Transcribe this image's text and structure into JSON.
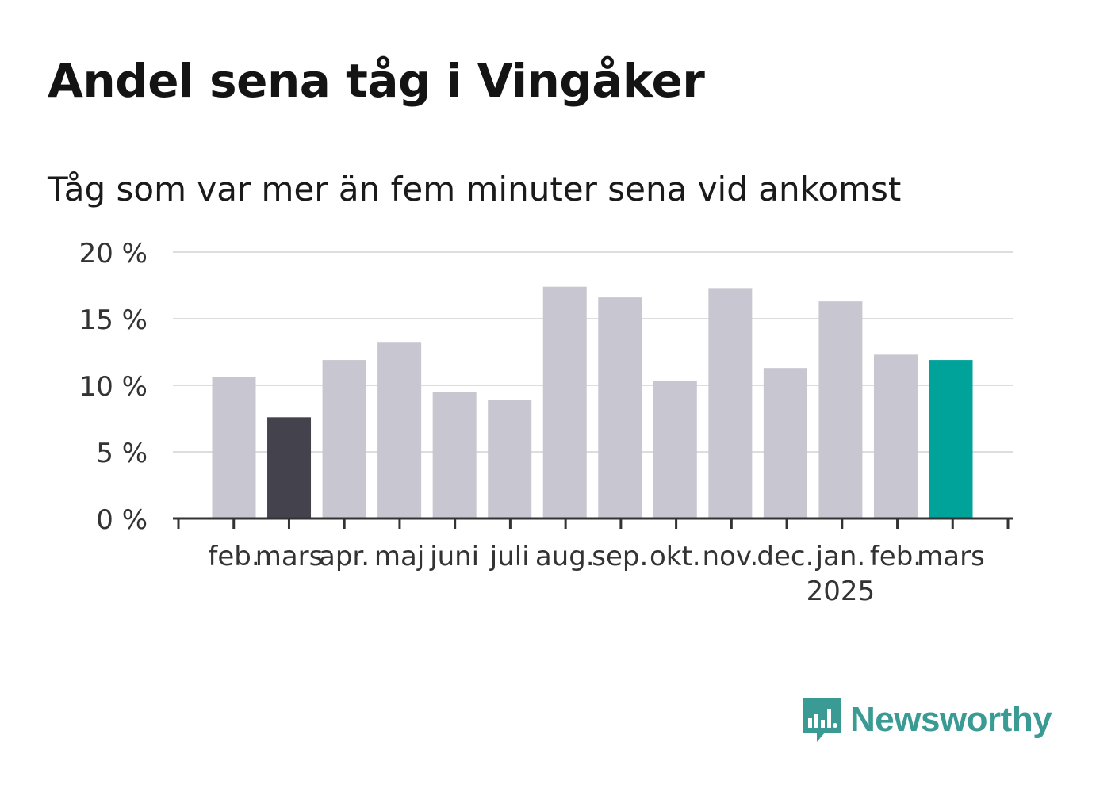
{
  "title": "Andel sena tåg i Vingåker",
  "subtitle": "Tåg som var mer än fem minuter sena vid ankomst",
  "brand": {
    "name": "Newsworthy",
    "color": "#3a9a94",
    "icon": "bar-chart-speech-bubble-icon"
  },
  "colors": {
    "default": "#c8c7d1",
    "previous_year": "#43424d",
    "current": "#00a39a",
    "grid": "#dddddd",
    "axis": "#333333"
  },
  "chart_data": {
    "type": "bar",
    "categories": [
      "feb.",
      "mars",
      "apr.",
      "maj",
      "juni",
      "juli",
      "aug.",
      "sep.",
      "okt.",
      "nov.",
      "dec.",
      "jan.",
      "feb.",
      "mars"
    ],
    "year_labels": [
      {
        "index": 11,
        "label": "2025"
      }
    ],
    "values": [
      10.6,
      7.6,
      11.9,
      13.2,
      9.5,
      8.9,
      17.4,
      16.6,
      10.3,
      17.3,
      11.3,
      16.3,
      12.3,
      11.9
    ],
    "highlight": {
      "previous_year_index": 1,
      "current_index": 13
    },
    "ylim": [
      0,
      20
    ],
    "yticks": [
      0,
      5,
      10,
      15,
      20
    ],
    "ytick_labels": [
      "0 %",
      "5 %",
      "10 %",
      "15 %",
      "20 %"
    ],
    "xlabel": "",
    "ylabel": "",
    "grid": true
  }
}
